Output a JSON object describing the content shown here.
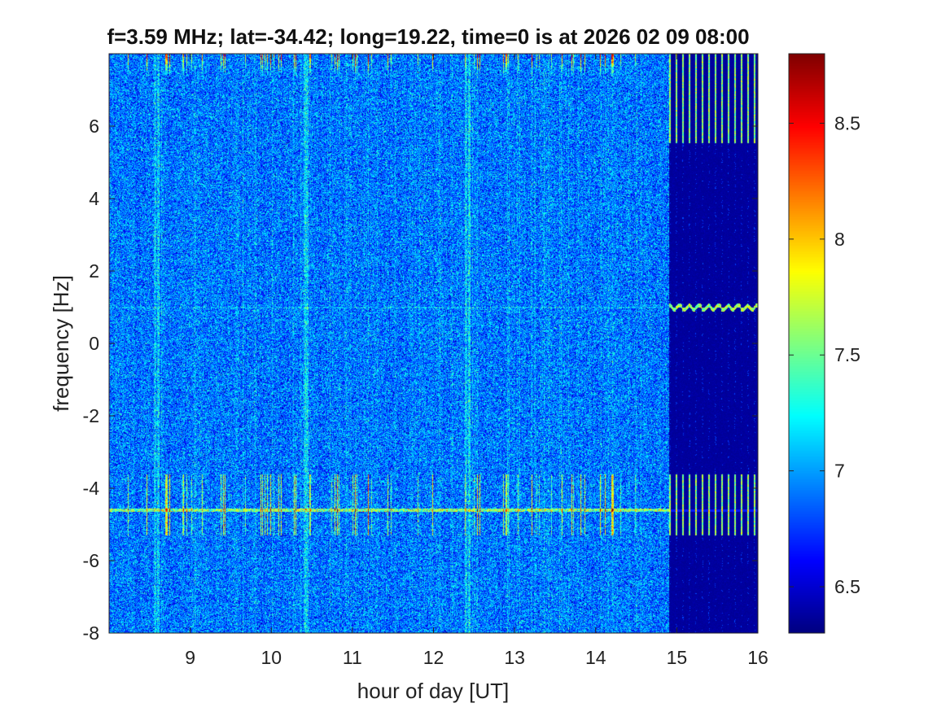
{
  "chart_data": {
    "type": "heatmap",
    "title": "f=3.59 MHz;  lat=-34.42; long=19.22, time=0 is at 2026 02 09 08:00",
    "xlabel": "hour of day [UT]",
    "ylabel": "frequency [Hz]",
    "xlim": [
      8,
      16
    ],
    "ylim": [
      -8,
      8
    ],
    "x_ticks": [
      9,
      10,
      11,
      12,
      13,
      14,
      15,
      16
    ],
    "y_ticks": [
      -8,
      -6,
      -4,
      -2,
      0,
      2,
      4,
      6
    ],
    "colorbar": {
      "range": [
        6.3,
        8.8
      ],
      "ticks": [
        6.5,
        7,
        7.5,
        8,
        8.5
      ],
      "colormap": "jet"
    },
    "grid": false,
    "features": {
      "data_gap_start_hour": 14.9,
      "background_level": 6.9,
      "gap_background_level": 6.35,
      "carrier_line_hz": 1.0,
      "interference_line_hz": -4.6
    }
  }
}
